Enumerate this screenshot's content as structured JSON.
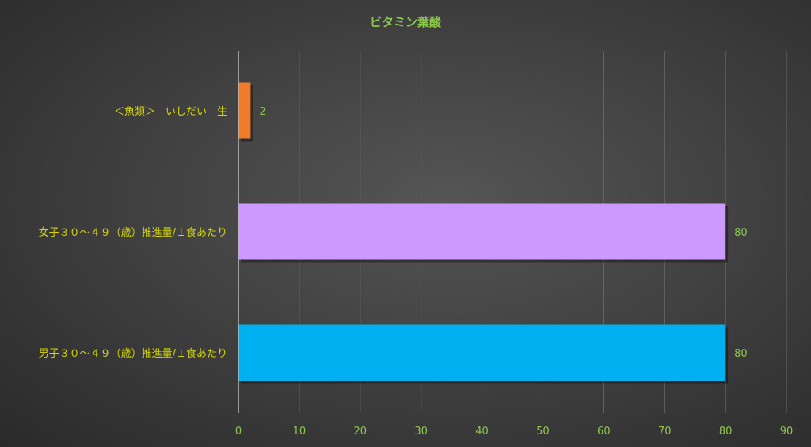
{
  "chart_data": {
    "type": "bar",
    "orientation": "horizontal",
    "title": "ビタミン葉酸",
    "categories": [
      "＜魚類＞　いしだい　生",
      "女子３０～４９（歳）推進量/１食あたり",
      "男子３０～４９（歳）推進量/１食あたり"
    ],
    "values": [
      2,
      80,
      80
    ],
    "colors": [
      "#f07b2a",
      "#cc99ff",
      "#00b0f0"
    ],
    "data_labels": [
      "2",
      "80",
      "80"
    ],
    "xlim": [
      0,
      90
    ],
    "xticks": [
      "0",
      "10",
      "20",
      "30",
      "40",
      "50",
      "60",
      "70",
      "80",
      "90"
    ],
    "grid": true,
    "legend": "none"
  }
}
